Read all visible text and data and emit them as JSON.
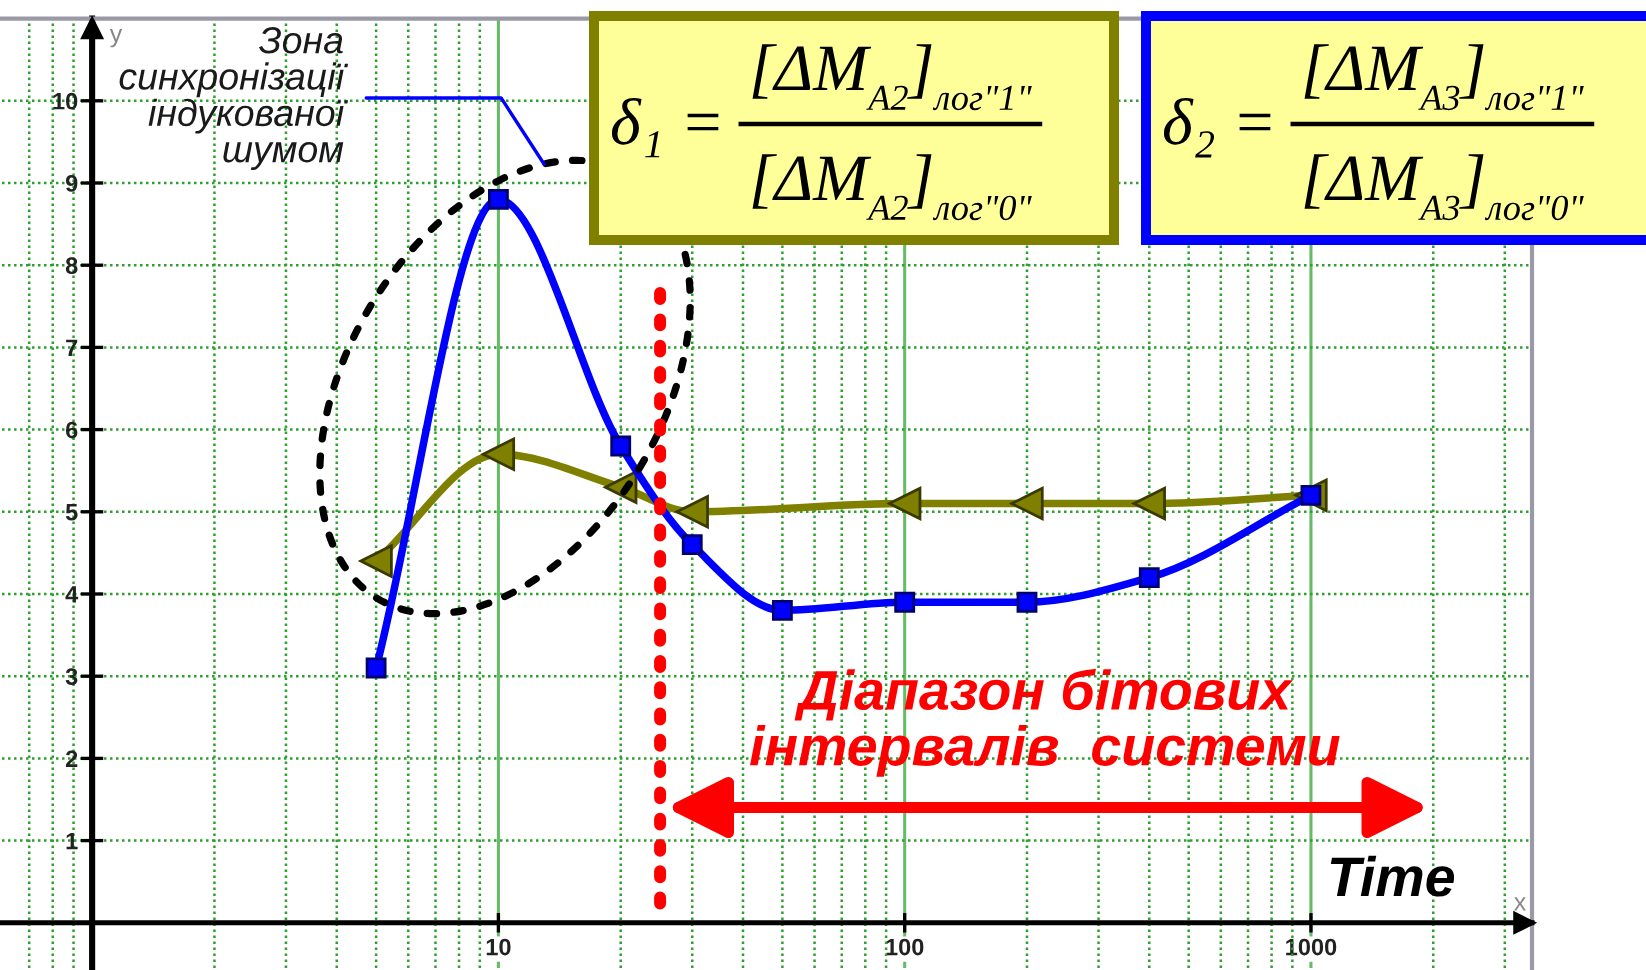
{
  "chart_data": {
    "type": "line",
    "xlabel": "Time",
    "ylabel": "y",
    "annotations": [
      "Зона\nсинхронізації\nіндукованої\nшумом",
      "x",
      "δ₁ =",
      "[ΔM$_{A2}$]$_{лог\"1\"}$",
      "[ΔM$_{A2}$]$_{лог\"0\"}$",
      "δ₂ =",
      "[ΔM$_{A3}$]$_{лог\"1\"}$",
      "[ΔM$_{A3}$]$_{лог\"0\"}$",
      "Діапазон бітових\nінтервалів  системи"
    ],
    "log": "x",
    "xlim": [
      0.6,
      3500
    ],
    "ylim": [
      -0.55,
      11
    ],
    "xticks": [
      {
        "value": 0.7,
        "label": null
      },
      {
        "value": 0.8,
        "label": null
      },
      {
        "value": 0.9,
        "label": null
      },
      {
        "value": 1,
        "label": null
      },
      {
        "value": 2,
        "label": null
      },
      {
        "value": 3,
        "label": null
      },
      {
        "value": 4,
        "label": null
      },
      {
        "value": 5,
        "label": null
      },
      {
        "value": 6,
        "label": null
      },
      {
        "value": 7,
        "label": null
      },
      {
        "value": 8,
        "label": null
      },
      {
        "value": 9,
        "label": null
      },
      10,
      {
        "value": 20,
        "label": null
      },
      {
        "value": 30,
        "label": null
      },
      {
        "value": 40,
        "label": null
      },
      {
        "value": 50,
        "label": null
      },
      {
        "value": 60,
        "label": null
      },
      {
        "value": 70,
        "label": null
      },
      {
        "value": 80,
        "label": null
      },
      {
        "value": 90,
        "label": null
      },
      100,
      {
        "value": 200,
        "label": null
      },
      {
        "value": 300,
        "label": null
      },
      {
        "value": 400,
        "label": null
      },
      {
        "value": 500,
        "label": null
      },
      {
        "value": 600,
        "label": null
      },
      {
        "value": 700,
        "label": null
      },
      {
        "value": 800,
        "label": null
      },
      {
        "value": 900,
        "label": null
      },
      1000,
      {
        "value": 2000,
        "label": null
      },
      {
        "value": 3000,
        "label": null
      }
    ],
    "yticks": [
      1,
      2,
      3,
      4,
      5,
      6,
      7,
      8,
      9,
      10
    ],
    "grid": true,
    "series": [
      {
        "color": "#808000",
        "marker": "triangle",
        "x": [
          5,
          10,
          20,
          30,
          100,
          200,
          400,
          1000
        ],
        "values": [
          4.4,
          5.7,
          5.3,
          5.0,
          5.1,
          5.1,
          5.1,
          5.2
        ]
      },
      {
        "color": "#0000ff",
        "marker": "square",
        "x": [
          5,
          10,
          20,
          30,
          50,
          100,
          200,
          400,
          1000
        ],
        "values": [
          3.1,
          8.8,
          5.8,
          4.6,
          3.8,
          3.9,
          3.9,
          4.2,
          5.2
        ]
      }
    ],
    "ref_lines": [
      {
        "axis": "x",
        "value": 25,
        "color": "#ff0000",
        "line_style": "dotted"
      }
    ]
  }
}
